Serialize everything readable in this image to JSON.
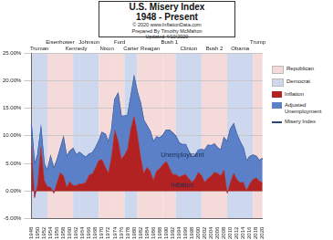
{
  "chart_data": {
    "type": "line",
    "title": "U.S. Misery Index",
    "subtitle": "1948 - Present",
    "notes": [
      "© 2020 www.InflationData.com",
      "Prepared By Timothy McMahon",
      "Updated 4/10/2020"
    ],
    "categories": [
      "1948",
      null,
      "1950",
      null,
      "1952",
      null,
      "1954",
      null,
      "1956",
      null,
      "1958",
      null,
      "1960",
      null,
      "1962",
      null,
      "1964",
      null,
      "1966",
      null,
      "1968",
      null,
      "1970",
      null,
      "1972",
      null,
      "1974",
      null,
      "1976",
      null,
      "1978",
      null,
      "1980",
      null,
      "1982",
      null,
      "1984",
      null,
      "1986",
      null,
      "1988",
      null,
      "1990",
      null,
      "1992",
      null,
      "1994",
      null,
      "1996",
      null,
      "1998",
      null,
      "2000",
      null,
      "2002",
      null,
      "2004",
      null,
      "2006",
      null,
      "2008",
      null,
      "2010",
      null,
      "2012",
      null,
      "2014",
      null,
      "2016",
      null,
      "2018",
      null,
      "2020"
    ],
    "series": [
      {
        "name": "Inflation",
        "type": "area",
        "color": "#b22222",
        "values": [
          8.1,
          -1.2,
          1.3,
          7.9,
          1.9,
          0.8,
          0.7,
          -0.4,
          1.5,
          3.3,
          2.8,
          0.7,
          1.7,
          1.0,
          1.0,
          1.3,
          1.3,
          1.6,
          2.9,
          3.1,
          4.2,
          5.5,
          5.7,
          4.4,
          3.2,
          6.2,
          11.0,
          9.1,
          5.8,
          6.5,
          7.6,
          11.3,
          13.5,
          10.3,
          6.2,
          3.2,
          4.3,
          3.6,
          1.9,
          3.6,
          4.1,
          4.8,
          5.4,
          4.2,
          3.0,
          3.0,
          2.6,
          2.8,
          3.0,
          2.3,
          1.6,
          2.2,
          3.4,
          2.8,
          1.6,
          2.3,
          2.7,
          3.4,
          3.2,
          2.8,
          3.8,
          -0.4,
          1.6,
          3.2,
          2.1,
          1.5,
          1.6,
          0.1,
          1.3,
          2.1,
          2.4,
          1.8,
          1.5
        ]
      },
      {
        "name": "Adjusted Unemployment",
        "type": "area",
        "color": "#5b80c8",
        "values": [
          3.8,
          5.9,
          5.3,
          3.3,
          3.0,
          2.9,
          5.5,
          4.4,
          4.1,
          4.3,
          6.8,
          5.5,
          5.5,
          6.7,
          5.5,
          5.7,
          5.2,
          4.5,
          3.8,
          3.8,
          3.6,
          3.5,
          4.9,
          5.9,
          5.6,
          4.9,
          5.6,
          8.5,
          7.7,
          7.1,
          6.1,
          5.8,
          7.1,
          7.6,
          9.7,
          9.6,
          7.5,
          7.2,
          7.0,
          6.2,
          5.5,
          5.3,
          5.6,
          6.8,
          7.5,
          6.9,
          6.1,
          5.6,
          5.4,
          4.9,
          4.5,
          4.2,
          4.0,
          4.7,
          5.8,
          6.0,
          5.5,
          5.1,
          4.6,
          4.6,
          5.8,
          9.3,
          9.6,
          8.9,
          8.1,
          7.4,
          6.2,
          5.3,
          4.9,
          4.4,
          3.9,
          3.7,
          4.4
        ]
      },
      {
        "name": "Misery Index",
        "type": "line",
        "color": "#27457f",
        "values": [
          11.9,
          4.7,
          6.6,
          11.2,
          4.9,
          3.7,
          6.2,
          4.0,
          5.6,
          7.6,
          9.6,
          6.2,
          7.2,
          7.7,
          6.5,
          7.0,
          6.5,
          6.1,
          6.7,
          6.9,
          7.8,
          9.0,
          10.6,
          10.3,
          8.8,
          11.1,
          16.6,
          17.6,
          13.5,
          13.6,
          13.7,
          17.1,
          20.6,
          17.9,
          15.9,
          12.8,
          11.8,
          10.8,
          8.9,
          9.8,
          9.6,
          10.1,
          11.0,
          11.0,
          10.5,
          9.9,
          8.7,
          8.4,
          8.4,
          7.2,
          6.1,
          6.4,
          7.4,
          7.5,
          7.4,
          8.3,
          8.2,
          8.5,
          7.8,
          7.4,
          9.6,
          8.9,
          11.2,
          12.1,
          10.2,
          8.9,
          7.8,
          5.4,
          6.2,
          6.5,
          6.3,
          5.5,
          5.9
        ]
      }
    ],
    "parties": [
      {
        "name": "Republican",
        "color": "#f5dada"
      },
      {
        "name": "Democrat",
        "color": "#cdd8ee"
      }
    ],
    "presidents": [
      {
        "name": "Truman",
        "party": "Democrat",
        "start": 1948,
        "end": 1953
      },
      {
        "name": "Eisenhower",
        "party": "Republican",
        "start": 1953,
        "end": 1961
      },
      {
        "name": "Kennedy",
        "party": "Democrat",
        "start": 1961,
        "end": 1963
      },
      {
        "name": "Johnson",
        "party": "Democrat",
        "start": 1963,
        "end": 1969
      },
      {
        "name": "Nixon",
        "party": "Republican",
        "start": 1969,
        "end": 1974
      },
      {
        "name": "Ford",
        "party": "Republican",
        "start": 1974,
        "end": 1977
      },
      {
        "name": "Carter",
        "party": "Democrat",
        "start": 1977,
        "end": 1981
      },
      {
        "name": "Reagan",
        "party": "Republican",
        "start": 1981,
        "end": 1989
      },
      {
        "name": "Bush 1",
        "party": "Republican",
        "start": 1989,
        "end": 1993
      },
      {
        "name": "Clinton",
        "party": "Democrat",
        "start": 1993,
        "end": 2001
      },
      {
        "name": "Bush 2",
        "party": "Republican",
        "start": 2001,
        "end": 2009
      },
      {
        "name": "Obama",
        "party": "Democrat",
        "start": 2009,
        "end": 2017
      },
      {
        "name": "Trump",
        "party": "Republican",
        "start": 2017,
        "end": 2020
      }
    ],
    "annotations": [
      {
        "text": "Unemployment",
        "x": 1995,
        "y": 6.5
      },
      {
        "text": "Inflation",
        "x": 1995,
        "y": 1
      }
    ],
    "ylim": [
      -5,
      25
    ],
    "yticks": [
      {
        "value": -5,
        "label": "-5.00%"
      },
      {
        "value": 0,
        "label": "0.00%"
      },
      {
        "value": 5,
        "label": "5.00%"
      },
      {
        "value": 10,
        "label": "10.00%"
      },
      {
        "value": 15,
        "label": "15.00%"
      },
      {
        "value": 20,
        "label": "20.00%"
      },
      {
        "value": 25,
        "label": "25.00%"
      }
    ],
    "stacked": true,
    "grid": true,
    "legend": "right"
  }
}
